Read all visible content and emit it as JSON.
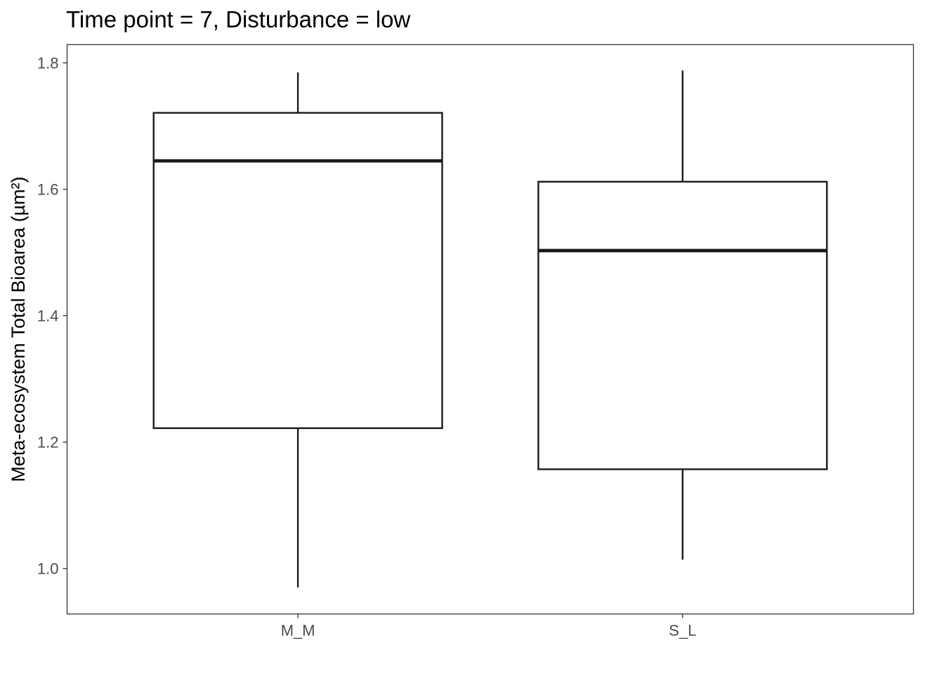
{
  "chart_data": {
    "type": "boxplot",
    "title": "Time point = 7, Disturbance = low",
    "xlabel": "",
    "ylabel": "Meta-ecosystem Total Bioarea (µm²)",
    "categories": [
      "M_M",
      "S_L"
    ],
    "boxes": [
      {
        "category": "M_M",
        "whisker_low": 0.97,
        "q1": 1.222,
        "median": 1.645,
        "q3": 1.721,
        "whisker_high": 1.785
      },
      {
        "category": "S_L",
        "whisker_low": 1.014,
        "q1": 1.157,
        "median": 1.503,
        "q3": 1.612,
        "whisker_high": 1.788
      }
    ],
    "ylim": [
      0.928,
      1.829
    ],
    "yticks": [
      1.0,
      1.2,
      1.4,
      1.6,
      1.8
    ],
    "ytick_labels": [
      "1.0",
      "1.2",
      "1.4",
      "1.6",
      "1.8"
    ],
    "grid": false,
    "legend": "none"
  }
}
